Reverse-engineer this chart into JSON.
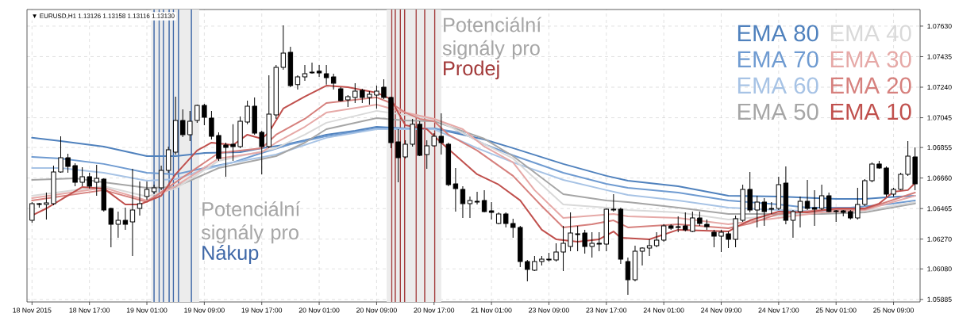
{
  "chart_data": {
    "type": "candlestick",
    "title": "▼ EURUSD,H1  1.13126 1.13158 1.13116 1.13130",
    "color": "#000000",
    "categories": [
      "18 Nov 2015",
      null,
      null,
      null,
      null,
      null,
      null,
      null,
      "18 Nov 17:00",
      null,
      null,
      null,
      null,
      null,
      null,
      null,
      "19 Nov 01:00",
      null,
      null,
      null,
      null,
      null,
      null,
      null,
      "19 Nov 09:00",
      null,
      null,
      null,
      null,
      null,
      null,
      null,
      "19 Nov 17:00",
      null,
      null,
      null,
      null,
      null,
      null,
      null,
      "20 Nov 01:00",
      null,
      null,
      null,
      null,
      null,
      null,
      null,
      "20 Nov 09:00",
      null,
      null,
      null,
      null,
      null,
      null,
      null,
      "20 Nov 17:00",
      null,
      null,
      null,
      null,
      null,
      null,
      null,
      "21 Nov 01:00",
      null,
      null,
      null,
      null,
      null,
      null,
      null,
      "23 Nov 09:00",
      null,
      null,
      null,
      null,
      null,
      null,
      null,
      "23 Nov 17:00",
      null,
      null,
      null,
      null,
      null,
      null,
      null,
      "24 Nov 01:00",
      null,
      null,
      null,
      null,
      null,
      null,
      null,
      "24 Nov 09:00",
      null,
      null,
      null,
      null,
      null,
      null,
      null,
      "24 Nov 17:00",
      null,
      null,
      null,
      null,
      null,
      null,
      null,
      "25 Nov 01:00",
      null,
      null,
      null,
      null,
      null,
      null,
      null,
      "25 Nov 09:00",
      null,
      null,
      null
    ],
    "ohlc": [
      [
        1.0639,
        1.06507,
        1.06375,
        1.06497
      ],
      [
        1.06491,
        1.06502,
        1.06471,
        1.06497
      ],
      [
        1.06491,
        1.06567,
        1.06395,
        1.06502
      ],
      [
        1.06497,
        1.06739,
        1.06486,
        1.06699
      ],
      [
        1.06699,
        1.06927,
        1.06694,
        1.0679
      ],
      [
        1.0679,
        1.06815,
        1.06694,
        1.06734
      ],
      [
        1.06739,
        1.06755,
        1.06608,
        1.06633
      ],
      [
        1.06633,
        1.06729,
        1.06608,
        1.06669
      ],
      [
        1.06669,
        1.06694,
        1.06593,
        1.06608
      ],
      [
        1.06633,
        1.06744,
        1.06547,
        1.06658
      ],
      [
        1.06653,
        1.06658,
        1.06446,
        1.06456
      ],
      [
        1.06466,
        1.06471,
        1.06218,
        1.06365
      ],
      [
        1.06365,
        1.06446,
        1.06279,
        1.0639
      ],
      [
        1.0639,
        1.06471,
        1.0633,
        1.06365
      ],
      [
        1.0638,
        1.06719,
        1.06163,
        1.06456
      ],
      [
        1.06466,
        1.06638,
        1.06421,
        1.06497
      ],
      [
        1.06542,
        1.06638,
        1.06522,
        1.06588
      ],
      [
        1.06572,
        1.06618,
        1.06557,
        1.06598
      ],
      [
        1.06598,
        1.06739,
        1.06583,
        1.06709
      ],
      [
        1.06709,
        1.06861,
        1.06694,
        1.06841
      ],
      [
        1.06825,
        1.0718,
        1.0681,
        1.07028
      ],
      [
        1.07028,
        1.07099,
        1.06922,
        1.06937
      ],
      [
        1.06937,
        1.07089,
        1.06896,
        1.07023
      ],
      [
        1.07028,
        1.07129,
        1.07013,
        1.07124
      ],
      [
        1.07124,
        1.07134,
        1.06997,
        1.07048
      ],
      [
        1.07043,
        1.07089,
        1.06906,
        1.06927
      ],
      [
        1.06932,
        1.06952,
        1.0677,
        1.06785
      ],
      [
        1.06871,
        1.06886,
        1.06669,
        1.06856
      ],
      [
        1.06876,
        1.07003,
        1.0677,
        1.06861
      ],
      [
        1.06861,
        1.07053,
        1.06851,
        1.07023
      ],
      [
        1.07018,
        1.07154,
        1.07003,
        1.07119
      ],
      [
        1.07119,
        1.07175,
        1.06937,
        1.06947
      ],
      [
        1.06952,
        1.06962,
        1.06684,
        1.06861
      ],
      [
        1.06861,
        1.07316,
        1.06851,
        1.07068
      ],
      [
        1.07063,
        1.07382,
        1.07038,
        1.07367
      ],
      [
        1.07367,
        1.07635,
        1.07352,
        1.07458
      ],
      [
        1.07463,
        1.07498,
        1.0724,
        1.0725
      ],
      [
        1.07256,
        1.07316,
        1.07225,
        1.07306
      ],
      [
        1.07306,
        1.07382,
        1.07281,
        1.07326
      ],
      [
        1.07331,
        1.07397,
        1.07326,
        1.07336
      ],
      [
        1.07342,
        1.07382,
        1.07306,
        1.07331
      ],
      [
        1.07326,
        1.07382,
        1.07256,
        1.07301
      ],
      [
        1.07306,
        1.07326,
        1.07225,
        1.07266
      ],
      [
        1.0723,
        1.0724,
        1.07149,
        1.07154
      ],
      [
        1.07159,
        1.0719,
        1.07114,
        1.0718
      ],
      [
        1.07175,
        1.07266,
        1.07139,
        1.07215
      ],
      [
        1.0722,
        1.0723,
        1.07139,
        1.07175
      ],
      [
        1.07175,
        1.07215,
        1.07129,
        1.07195
      ],
      [
        1.0719,
        1.0725,
        1.07104,
        1.07215
      ],
      [
        1.0724,
        1.07291,
        1.07164,
        1.07175
      ],
      [
        1.07175,
        1.0718,
        1.06851,
        1.06886
      ],
      [
        1.06891,
        1.06972,
        1.06633,
        1.0679
      ],
      [
        1.06795,
        1.06901,
        1.06785,
        1.06876
      ],
      [
        1.06876,
        1.07038,
        1.06861,
        1.07003
      ],
      [
        1.07003,
        1.07023,
        1.068,
        1.06805
      ],
      [
        1.0681,
        1.06901,
        1.06719,
        1.06866
      ],
      [
        1.06866,
        1.06947,
        1.06861,
        1.06927
      ],
      [
        1.06927,
        1.07073,
        1.0681,
        1.06886
      ],
      [
        1.06876,
        1.06886,
        1.06608,
        1.06618
      ],
      [
        1.06623,
        1.06724,
        1.06446,
        1.06593
      ],
      [
        1.06588,
        1.06608,
        1.06405,
        1.06497
      ],
      [
        1.06497,
        1.06542,
        1.06405,
        1.06517
      ],
      [
        1.06512,
        1.06572,
        1.06491,
        1.06507
      ],
      [
        1.06517,
        1.06583,
        1.06441,
        1.06446
      ],
      [
        1.06451,
        1.06507,
        1.06395,
        1.06441
      ],
      [
        1.0637,
        1.06441,
        1.06365,
        1.06431
      ],
      [
        1.06431,
        1.06441,
        1.06345,
        1.0637
      ],
      [
        1.0637,
        1.064,
        1.06279,
        1.06345
      ],
      [
        1.06345,
        1.06355,
        1.06092,
        1.06127
      ],
      [
        1.06127,
        1.06137,
        1.06001,
        1.06077
      ],
      [
        1.06071,
        1.06163,
        1.06066,
        1.06127
      ],
      [
        1.06127,
        1.06163,
        1.06102,
        1.06142
      ],
      [
        1.06137,
        1.06183,
        1.06127,
        1.06142
      ],
      [
        1.06137,
        1.06244,
        1.06127,
        1.06188
      ],
      [
        1.06188,
        1.06355,
        1.06066,
        1.06244
      ],
      [
        1.06223,
        1.06441,
        1.06193,
        1.06309
      ],
      [
        1.06299,
        1.06355,
        1.06193,
        1.06304
      ],
      [
        1.06309,
        1.0633,
        1.06178,
        1.06223
      ],
      [
        1.06223,
        1.06314,
        1.06152,
        1.06244
      ],
      [
        1.06244,
        1.06314,
        1.06193,
        1.06238
      ],
      [
        1.06238,
        1.06466,
        1.06193,
        1.06461
      ],
      [
        1.06461,
        1.06557,
        1.06446,
        1.06456
      ],
      [
        1.06461,
        1.06471,
        1.06112,
        1.06142
      ],
      [
        1.06127,
        1.06152,
        1.05915,
        1.06011
      ],
      [
        1.06011,
        1.06228,
        1.06001,
        1.06193
      ],
      [
        1.06193,
        1.06218,
        1.06102,
        1.06213
      ],
      [
        1.06213,
        1.06269,
        1.06163,
        1.06228
      ],
      [
        1.06228,
        1.06314,
        1.06218,
        1.06264
      ],
      [
        1.06264,
        1.06365,
        1.06254,
        1.06355
      ],
      [
        1.06355,
        1.06365,
        1.0633,
        1.0634
      ],
      [
        1.0635,
        1.06416,
        1.06314,
        1.06345
      ],
      [
        1.06355,
        1.06441,
        1.06319,
        1.0633
      ],
      [
        1.06319,
        1.06446,
        1.06314,
        1.06405
      ],
      [
        1.06405,
        1.06446,
        1.06355,
        1.0637
      ],
      [
        1.06365,
        1.06395,
        1.0633,
        1.0635
      ],
      [
        1.06314,
        1.0633,
        1.06218,
        1.06289
      ],
      [
        1.06289,
        1.0633,
        1.06188,
        1.06314
      ],
      [
        1.06304,
        1.06319,
        1.06213,
        1.06269
      ],
      [
        1.06269,
        1.06421,
        1.06218,
        1.064
      ],
      [
        1.0639,
        1.06618,
        1.0638,
        1.06588
      ],
      [
        1.06588,
        1.06699,
        1.06441,
        1.06456
      ],
      [
        1.06456,
        1.06547,
        1.06345,
        1.06507
      ],
      [
        1.06507,
        1.06532,
        1.06355,
        1.06446
      ],
      [
        1.06466,
        1.06507,
        1.06431,
        1.06461
      ],
      [
        1.06466,
        1.06669,
        1.06456,
        1.06618
      ],
      [
        1.06628,
        1.06734,
        1.06365,
        1.0639
      ],
      [
        1.0639,
        1.06456,
        1.06279,
        1.06446
      ],
      [
        1.06446,
        1.06542,
        1.06345,
        1.06512
      ],
      [
        1.06512,
        1.06648,
        1.06456,
        1.06466
      ],
      [
        1.06471,
        1.06583,
        1.06355,
        1.06461
      ],
      [
        1.06466,
        1.06618,
        1.06456,
        1.06547
      ],
      [
        1.06547,
        1.06567,
        1.06441,
        1.06446
      ],
      [
        1.06451,
        1.06456,
        1.0638,
        1.06446
      ],
      [
        1.06451,
        1.06456,
        1.06416,
        1.06441
      ],
      [
        1.06446,
        1.06456,
        1.06395,
        1.06405
      ],
      [
        1.06405,
        1.06598,
        1.06395,
        1.06491
      ],
      [
        1.06491,
        1.06653,
        1.06481,
        1.06643
      ],
      [
        1.06643,
        1.0676,
        1.06633,
        1.0675
      ],
      [
        1.0675,
        1.0677,
        1.06719,
        1.06724
      ],
      [
        1.06724,
        1.06734,
        1.06542,
        1.06557
      ],
      [
        1.06557,
        1.06598,
        1.06542,
        1.06588
      ],
      [
        1.06588,
        1.06694,
        1.06583,
        1.06684
      ],
      [
        1.06684,
        1.06896,
        1.06674,
        1.068
      ],
      [
        1.06795,
        1.06856,
        1.06583,
        1.06623
      ]
    ],
    "series": [
      {
        "type": "line",
        "name": "EMA 80",
        "color": "#4f81bd",
        "values": [
          1.06917,
          null,
          null,
          null,
          1.06896,
          null,
          null,
          null,
          null,
          null,
          1.06861,
          null,
          null,
          null,
          null,
          null,
          1.068,
          null,
          null,
          null,
          1.068,
          null,
          null,
          null,
          1.0682,
          null,
          null,
          null,
          null,
          1.06825,
          null,
          null,
          1.06851,
          null,
          null,
          1.06871,
          null,
          null,
          1.06901,
          null,
          null,
          1.06937,
          null,
          null,
          null,
          1.06962,
          null,
          null,
          1.06987,
          null,
          null,
          null,
          1.06977,
          null,
          null,
          null,
          1.06977,
          null,
          null,
          null,
          1.06937,
          null,
          null,
          1.06906,
          null,
          null,
          null,
          1.06851,
          null,
          null,
          null,
          null,
          null,
          null,
          1.0675,
          null,
          null,
          null,
          null,
          null,
          1.06674,
          null,
          null,
          1.06643,
          null,
          null,
          null,
          null,
          null,
          null,
          1.06608,
          null,
          null,
          null,
          null,
          null,
          null,
          1.06547,
          null,
          null,
          null,
          null,
          null,
          null,
          1.06542,
          null,
          null,
          null,
          null,
          null,
          null,
          null,
          1.06527,
          null,
          null,
          null,
          1.06527,
          null,
          null,
          1.06537,
          null,
          null,
          null,
          1.06547
        ]
      },
      {
        "type": "line",
        "name": "EMA 70",
        "color": "#6f9bd1",
        "values": [
          1.06795,
          null,
          null,
          null,
          1.06785,
          null,
          null,
          null,
          null,
          null,
          1.0675,
          null,
          null,
          null,
          null,
          null,
          1.06694,
          null,
          null,
          null,
          1.06684,
          null,
          null,
          null,
          1.06724,
          null,
          null,
          null,
          1.0676,
          null,
          null,
          null,
          1.0682,
          null,
          null,
          null,
          1.06876,
          null,
          null,
          null,
          null,
          1.06927,
          null,
          null,
          null,
          null,
          null,
          null,
          1.06977,
          null,
          null,
          null,
          null,
          null,
          null,
          null,
          1.06977,
          null,
          null,
          null,
          1.06947,
          null,
          null,
          1.06876,
          null,
          null,
          null,
          1.06805,
          null,
          null,
          null,
          null,
          null,
          null,
          1.06694,
          null,
          null,
          null,
          null,
          null,
          1.06623,
          null,
          null,
          1.06598,
          null,
          null,
          null,
          null,
          null,
          null,
          1.06567,
          null,
          null,
          null,
          null,
          null,
          null,
          1.06517,
          null,
          null,
          null,
          null,
          null,
          null,
          1.06491,
          null,
          null,
          null,
          1.06471,
          null,
          null,
          null,
          null,
          null,
          1.06471,
          null,
          null,
          null,
          null,
          1.06491,
          null,
          null,
          null,
          1.06517
        ]
      },
      {
        "type": "line",
        "name": "EMA 60",
        "color": "#a7c3e5",
        "values": [
          1.06724,
          null,
          null,
          null,
          1.06724,
          null,
          null,
          null,
          null,
          null,
          1.06694,
          null,
          null,
          null,
          null,
          null,
          1.06643,
          null,
          null,
          null,
          1.06653,
          null,
          null,
          null,
          1.06714,
          null,
          null,
          null,
          1.0676,
          null,
          null,
          null,
          null,
          null,
          1.0681,
          null,
          null,
          null,
          null,
          null,
          null,
          1.06917,
          null,
          null,
          null,
          null,
          null,
          null,
          1.06972,
          null,
          null,
          null,
          null,
          null,
          null,
          null,
          1.06972,
          null,
          null,
          null,
          null,
          null,
          1.06851,
          null,
          null,
          null,
          null,
          1.0676,
          null,
          null,
          null,
          null,
          null,
          null,
          1.06648,
          null,
          null,
          null,
          null,
          null,
          1.06583,
          null,
          null,
          1.06552,
          null,
          null,
          null,
          null,
          null,
          null,
          1.06517,
          null,
          null,
          null,
          null,
          null,
          null,
          1.06471,
          null,
          null,
          null,
          null,
          null,
          null,
          1.06456,
          null,
          null,
          null,
          null,
          null,
          1.06446,
          null,
          null,
          null,
          1.06446,
          null,
          null,
          null,
          null,
          1.06466,
          null,
          null,
          null,
          1.06502
        ]
      },
      {
        "type": "line",
        "name": "EMA 50",
        "color": "#a6a6a6",
        "values": [
          1.06648,
          null,
          null,
          null,
          null,
          null,
          1.06658,
          null,
          null,
          null,
          1.06633,
          null,
          null,
          null,
          null,
          null,
          1.06598,
          null,
          null,
          null,
          1.06603,
          null,
          null,
          null,
          null,
          null,
          1.06724,
          null,
          null,
          null,
          null,
          null,
          null,
          null,
          1.068,
          null,
          null,
          null,
          1.06886,
          null,
          null,
          1.06972,
          null,
          null,
          null,
          null,
          null,
          null,
          1.07043,
          null,
          null,
          null,
          1.07028,
          null,
          null,
          null,
          1.07023,
          null,
          null,
          null,
          null,
          null,
          null,
          1.06911,
          null,
          null,
          null,
          1.068,
          null,
          null,
          null,
          null,
          null,
          null,
          1.06557,
          null,
          null,
          null,
          null,
          null,
          1.06517,
          null,
          null,
          1.06507,
          null,
          null,
          null,
          null,
          null,
          null,
          1.06471,
          null,
          null,
          null,
          null,
          null,
          null,
          1.06431,
          null,
          null,
          null,
          null,
          null,
          null,
          1.06431,
          null,
          null,
          null,
          null,
          null,
          1.06431,
          null,
          null,
          null,
          null,
          null,
          1.06441,
          null,
          null,
          null,
          null,
          null,
          null,
          1.06497
        ]
      },
      {
        "type": "line",
        "name": "EMA 40",
        "color": "#d9d9d9",
        "values": [
          1.06547,
          null,
          null,
          null,
          null,
          null,
          null,
          null,
          null,
          null,
          1.06608,
          null,
          null,
          null,
          null,
          null,
          1.06542,
          null,
          null,
          null,
          1.06593,
          null,
          null,
          null,
          null,
          null,
          1.0677,
          null,
          null,
          null,
          null,
          null,
          null,
          null,
          1.06851,
          null,
          null,
          null,
          1.06937,
          null,
          null,
          1.07013,
          null,
          null,
          null,
          null,
          null,
          null,
          1.07089,
          null,
          null,
          null,
          1.07063,
          null,
          null,
          null,
          1.07038,
          null,
          null,
          null,
          null,
          null,
          null,
          1.06876,
          null,
          null,
          null,
          1.06785,
          null,
          null,
          null,
          null,
          null,
          null,
          1.06491,
          null,
          null,
          null,
          null,
          null,
          1.06471,
          null,
          null,
          1.06456,
          null,
          null,
          null,
          null,
          null,
          null,
          1.06441,
          null,
          null,
          null,
          null,
          null,
          null,
          1.06395,
          null,
          null,
          null,
          null,
          null,
          null,
          1.06421,
          null,
          null,
          null,
          null,
          null,
          1.06441,
          null,
          null,
          null,
          null,
          null,
          1.06451,
          null,
          null,
          null,
          null,
          null,
          null,
          1.06507
        ]
      },
      {
        "type": "line",
        "name": "EMA 30",
        "color": "#e6a9a7",
        "values": [
          1.06532,
          null,
          null,
          null,
          null,
          null,
          null,
          null,
          null,
          null,
          1.06598,
          null,
          null,
          null,
          null,
          null,
          1.06517,
          null,
          null,
          null,
          1.06608,
          null,
          null,
          null,
          null,
          null,
          1.06785,
          null,
          null,
          null,
          null,
          null,
          1.06825,
          null,
          1.06886,
          null,
          null,
          null,
          1.06987,
          null,
          null,
          1.07078,
          null,
          null,
          null,
          null,
          null,
          null,
          1.07129,
          null,
          null,
          null,
          1.07078,
          null,
          null,
          null,
          1.07038,
          null,
          null,
          null,
          1.06972,
          null,
          null,
          1.06861,
          null,
          null,
          null,
          1.0676,
          null,
          null,
          1.06583,
          null,
          null,
          null,
          1.06405,
          null,
          null,
          null,
          null,
          null,
          null,
          1.06431,
          null,
          1.06416,
          null,
          null,
          null,
          null,
          null,
          null,
          1.06405,
          null,
          null,
          null,
          null,
          null,
          null,
          1.06365,
          null,
          null,
          null,
          null,
          null,
          null,
          1.06405,
          null,
          null,
          null,
          null,
          null,
          1.06441,
          null,
          null,
          null,
          null,
          null,
          1.06456,
          null,
          null,
          null,
          null,
          null,
          null,
          1.06547
        ]
      },
      {
        "type": "line",
        "name": "EMA 20",
        "color": "#d6807d",
        "values": [
          1.06517,
          null,
          null,
          null,
          null,
          null,
          null,
          null,
          null,
          null,
          1.06583,
          null,
          null,
          null,
          null,
          null,
          1.06507,
          null,
          null,
          null,
          1.06633,
          null,
          null,
          null,
          null,
          null,
          1.0682,
          null,
          null,
          null,
          null,
          null,
          1.06851,
          null,
          1.06937,
          null,
          null,
          null,
          1.07038,
          null,
          null,
          1.07139,
          null,
          null,
          null,
          null,
          null,
          null,
          1.07175,
          null,
          1.07139,
          null,
          1.07078,
          null,
          1.07038,
          null,
          1.07023,
          null,
          1.06937,
          null,
          null,
          null,
          1.06836,
          null,
          null,
          null,
          null,
          1.06674,
          null,
          null,
          null,
          1.06481,
          null,
          null,
          1.06345,
          null,
          null,
          null,
          1.06365,
          null,
          null,
          1.0639,
          null,
          1.06345,
          null,
          null,
          null,
          null,
          null,
          null,
          1.06365,
          null,
          null,
          null,
          null,
          null,
          null,
          1.0634,
          null,
          null,
          1.0637,
          null,
          null,
          null,
          1.06431,
          null,
          null,
          null,
          null,
          null,
          1.06456,
          null,
          null,
          null,
          null,
          null,
          1.06461,
          null,
          null,
          null,
          null,
          null,
          null,
          1.06567
        ]
      },
      {
        "type": "line",
        "name": "EMA 10",
        "color": "#c0504d",
        "values": [
          1.06421,
          null,
          1.06466,
          null,
          null,
          null,
          null,
          1.06603,
          null,
          null,
          1.06593,
          null,
          null,
          1.06491,
          null,
          1.06491,
          null,
          null,
          1.06547,
          null,
          1.06684,
          null,
          null,
          1.06836,
          null,
          1.06886,
          null,
          null,
          1.06871,
          null,
          1.06937,
          null,
          1.06911,
          1.06952,
          null,
          1.07104,
          null,
          null,
          1.0718,
          null,
          null,
          1.0725,
          null,
          null,
          1.0724,
          null,
          null,
          null,
          1.07205,
          null,
          1.07164,
          1.07078,
          1.06997,
          null,
          null,
          1.06972,
          null,
          1.06886,
          null,
          null,
          null,
          null,
          1.06684,
          null,
          null,
          1.06618,
          null,
          null,
          1.06517,
          null,
          null,
          1.0633,
          null,
          1.06269,
          null,
          null,
          1.06254,
          null,
          null,
          1.06269,
          null,
          1.06319,
          1.06279,
          null,
          null,
          null,
          1.06269,
          null,
          null,
          null,
          1.0633,
          null,
          null,
          null,
          null,
          null,
          null,
          1.06319,
          1.06345,
          null,
          1.0639,
          null,
          null,
          null,
          1.06446,
          null,
          null,
          null,
          1.06441,
          null,
          null,
          null,
          1.06466,
          null,
          null,
          null,
          1.06466,
          null,
          1.06497,
          null,
          1.06572,
          null,
          1.06583,
          1.06628
        ]
      }
    ],
    "ylim": [
      1.05869,
      1.07736
    ],
    "yticks": [
      {
        "value": 1.0763,
        "label": "1.07630"
      },
      1.07435,
      {
        "value": 1.0724,
        "label": "1.07240"
      },
      1.07045,
      1.06855,
      {
        "value": 1.0666,
        "label": "1.06660"
      },
      1.06465,
      {
        "value": 1.0627,
        "label": "1.06270"
      },
      {
        "value": 1.0608,
        "label": "1.06080"
      },
      1.05885
    ],
    "grid": true,
    "legend": "top right",
    "annotations": [
      "Potenciální signály pro",
      "Nákup",
      "Potenciální signály pro",
      "Prodej"
    ]
  }
}
